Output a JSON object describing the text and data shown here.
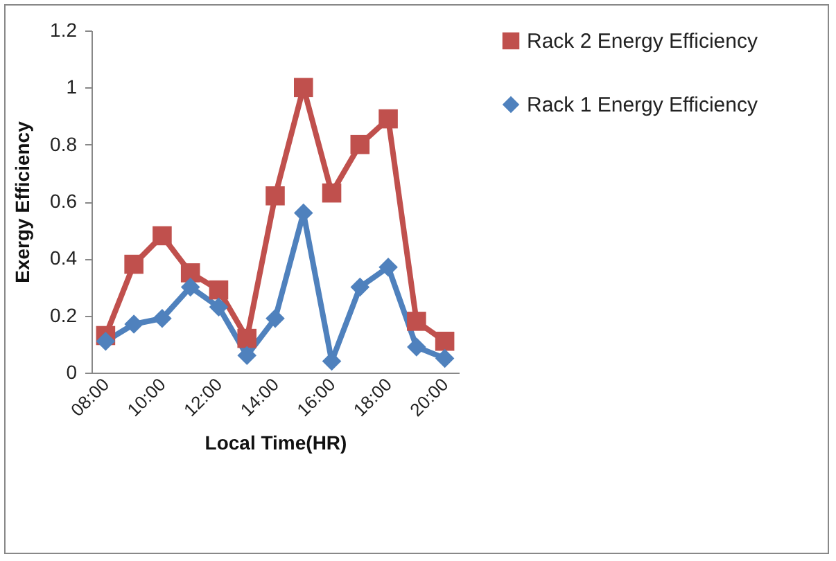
{
  "chart_data": {
    "type": "line",
    "xlabel": "Local Time(HR)",
    "ylabel": "Exergy Efficiency",
    "x": [
      8,
      9,
      10,
      11,
      12,
      13,
      14,
      15,
      16,
      17,
      18,
      19,
      20
    ],
    "series": [
      {
        "name": "Rack 2 Energy Efficiency",
        "color": "#c0504d",
        "marker": "square",
        "values": [
          0.13,
          0.38,
          0.48,
          0.35,
          0.29,
          0.12,
          0.62,
          1.0,
          0.63,
          0.8,
          0.89,
          0.18,
          0.11
        ]
      },
      {
        "name": "Rack 1 Energy Efficiency",
        "color": "#4f81bd",
        "marker": "diamond",
        "values": [
          0.11,
          0.17,
          0.19,
          0.3,
          0.23,
          0.06,
          0.19,
          0.56,
          0.04,
          0.3,
          0.37,
          0.09,
          0.05
        ]
      }
    ],
    "xlim": [
      7.5,
      20.5
    ],
    "xticks": [
      {
        "value": 8,
        "label": "08:00"
      },
      {
        "value": 10,
        "label": "10:00"
      },
      {
        "value": 12,
        "label": "12:00"
      },
      {
        "value": 14,
        "label": "14:00"
      },
      {
        "value": 16,
        "label": "16:00"
      },
      {
        "value": 18,
        "label": "18:00"
      },
      {
        "value": 20,
        "label": "20:00"
      }
    ],
    "ylim": [
      0,
      1.2
    ],
    "yticks": [
      0,
      0.2,
      0.4,
      0.6,
      0.8,
      1,
      1.2
    ],
    "grid": false,
    "legend": "right",
    "line_style": "solid"
  }
}
